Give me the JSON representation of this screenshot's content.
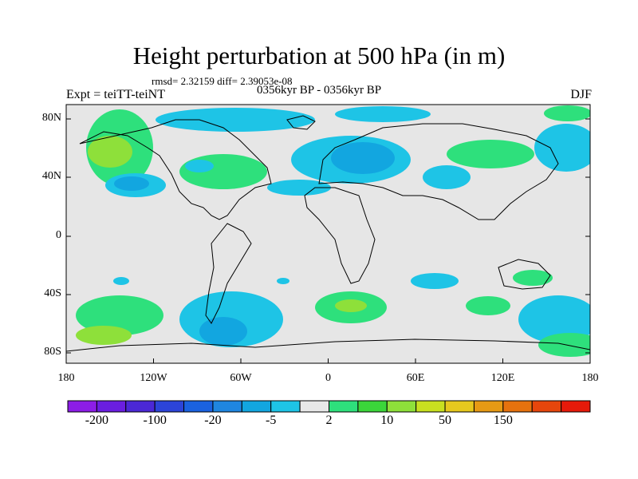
{
  "title": "Height perturbation at 500 hPa (in m)",
  "stats": "rmsd= 2.32159 diff= 2.39053e-08",
  "experiment": "Expt = teiTT-teiNT",
  "period": "0356kyr BP - 0356kyr BP",
  "season": "DJF",
  "map": {
    "lat_ticks": [
      "80N",
      "40N",
      "0",
      "40S",
      "80S"
    ],
    "lon_ticks": [
      "180",
      "120W",
      "60W",
      "0",
      "60E",
      "120E",
      "180"
    ],
    "land_color": "#e6e6e6",
    "outline_color": "#000000"
  },
  "colorbar": {
    "colors": [
      "#8c1de6",
      "#6a1ee0",
      "#4b28d6",
      "#2c44d8",
      "#1a62e0",
      "#1f86e0",
      "#12a6e0",
      "#1ec4e6",
      "#e8e8e8",
      "#2ee07c",
      "#3bd63a",
      "#8ee03a",
      "#c8e020",
      "#e6c81e",
      "#e69a14",
      "#e6720e",
      "#e6460c",
      "#e61a0a"
    ],
    "labels": [
      "-200",
      "-100",
      "-20",
      "-5",
      "2",
      "10",
      "50",
      "150"
    ]
  }
}
